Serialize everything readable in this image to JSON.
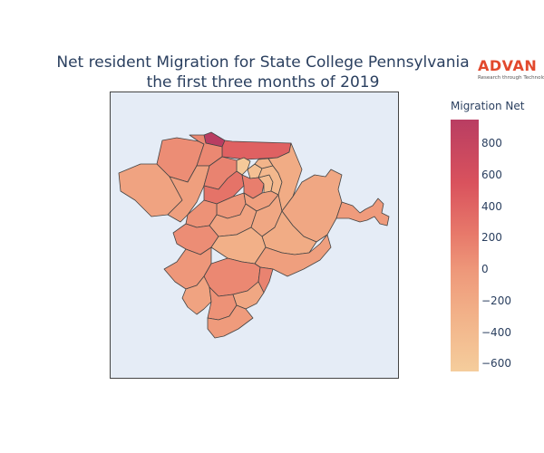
{
  "title": {
    "line1": "Net resident Migration for State College Pennsylvania",
    "line2": "the first three months of 2019"
  },
  "logo": {
    "word": "ADVAN",
    "tagline": "Research through Technology"
  },
  "colorbar": {
    "title": "Migration Net",
    "range": [
      -650,
      950
    ],
    "ticks": [
      {
        "value": 800,
        "label": "800"
      },
      {
        "value": 600,
        "label": "600"
      },
      {
        "value": 400,
        "label": "400"
      },
      {
        "value": 200,
        "label": "200"
      },
      {
        "value": 0,
        "label": "0"
      },
      {
        "value": -200,
        "label": "−200"
      },
      {
        "value": -400,
        "label": "−400"
      },
      {
        "value": -600,
        "label": "−600"
      }
    ],
    "colorscale": [
      "#f5cd9c",
      "#f2b289",
      "#ee987a",
      "#e7786a",
      "#d9525d",
      "#b93d62"
    ]
  },
  "map": {
    "background": "#e5ecf6",
    "region_values": [
      950,
      500,
      -600,
      -500,
      -350,
      100,
      150,
      -150,
      -100,
      200,
      350,
      250,
      -450,
      -400,
      -250,
      -200,
      -50,
      0,
      -100,
      50,
      -150,
      -200,
      -250,
      100,
      -300,
      -100,
      0,
      150,
      200,
      -150,
      50,
      -200,
      -50
    ]
  }
}
